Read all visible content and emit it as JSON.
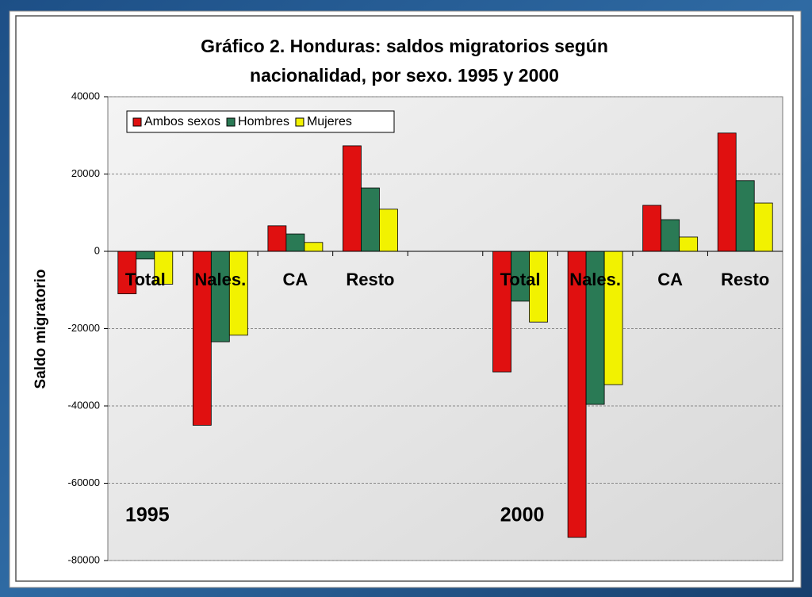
{
  "chart_data": {
    "type": "bar",
    "title": [
      "Gráfico 2. Honduras: saldos migratorios según",
      "nacionalidad, por sexo. 1995 y 2000"
    ],
    "y_label": "Saldo migratorio",
    "categories": [
      "Total",
      "Nales.",
      "CA",
      "Resto",
      null,
      "Total",
      "Nales.",
      "CA",
      "Resto"
    ],
    "series": [
      {
        "name": "Ambos sexos",
        "color": "#e01010",
        "values": [
          -11000,
          -45000,
          6600,
          27300,
          null,
          -31200,
          -74000,
          11900,
          30600
        ]
      },
      {
        "name": "Hombres",
        "color": "#2a7a55",
        "values": [
          -2000,
          -23400,
          4500,
          16400,
          null,
          -12900,
          -39600,
          8200,
          18300
        ]
      },
      {
        "name": "Mujeres",
        "color": "#f2f200",
        "values": [
          -8500,
          -21700,
          2300,
          10900,
          null,
          -18300,
          -34500,
          3700,
          12500
        ]
      }
    ],
    "annotations": [
      {
        "text": "1995",
        "category": 0
      },
      {
        "text": "2000",
        "category": 5
      }
    ],
    "ylim": [
      -80000,
      40000
    ],
    "yticks": [
      -80000,
      -60000,
      -40000,
      -20000,
      0,
      20000,
      40000
    ],
    "grid": true,
    "legend": "upper left"
  }
}
